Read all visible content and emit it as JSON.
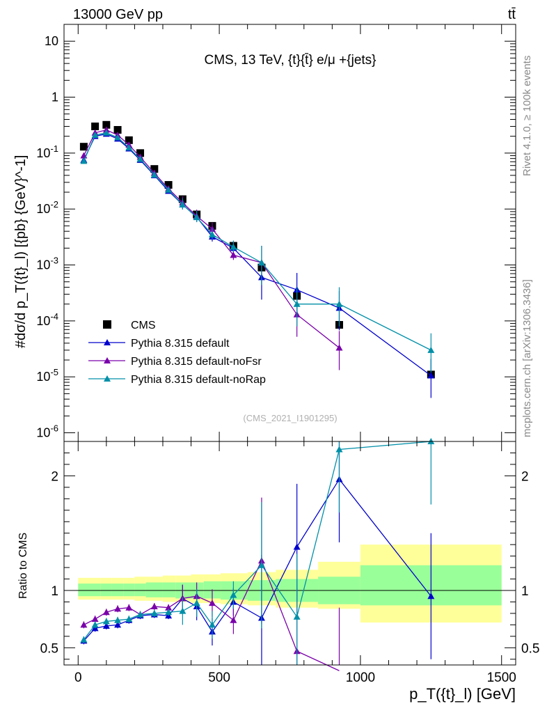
{
  "header": {
    "left": "13000 GeV pp",
    "right": "tt̄"
  },
  "side": {
    "top": "Rivet 4.1.0, ≥ 100k events",
    "bottom": "mcplots.cern.ch [arXiv:1306.3436]"
  },
  "chart_data": [
    {
      "type": "scatter",
      "panel": "main",
      "title": "CMS, 13 TeV, {t}{t̄} e/μ +{jets}",
      "watermark": "(CMS_2021_I1901295)",
      "ylabel": "#dσ/d p_T({t}_l) [{pb} {GeV}^-1]",
      "yscale": "log",
      "ylim": [
        7e-07,
        20
      ],
      "xlim": [
        -50,
        1550
      ],
      "ytick_labels": [
        "10^-6",
        "10^-5",
        "10^-4",
        "10^-3",
        "10^-2",
        "10^-1",
        "1",
        "10"
      ],
      "x": [
        20,
        60,
        100,
        140,
        180,
        220,
        270,
        320,
        370,
        420,
        475,
        550,
        650,
        775,
        925,
        1250
      ],
      "series": [
        {
          "name": "CMS",
          "color": "#000000",
          "marker": "square",
          "values": [
            0.13,
            0.3,
            0.32,
            0.26,
            0.17,
            0.1,
            0.052,
            0.027,
            0.015,
            0.008,
            0.005,
            0.0022,
            0.0009,
            0.00028,
            8.5e-05,
            1.1e-05
          ]
        },
        {
          "name": "Pythia 8.315 default",
          "color": "#0000cc",
          "marker": "triangle",
          "values": [
            0.075,
            0.2,
            0.22,
            0.18,
            0.12,
            0.075,
            0.04,
            0.021,
            0.012,
            0.0072,
            0.0032,
            0.002,
            0.0006,
            0.00036,
            0.00017,
            1.05e-05
          ]
        },
        {
          "name": "Pythia 8.315 default-noFsr",
          "color": "#7a00aa",
          "marker": "triangle",
          "values": [
            0.09,
            0.23,
            0.26,
            0.21,
            0.14,
            0.085,
            0.044,
            0.023,
            0.013,
            0.0075,
            0.0044,
            0.0015,
            0.0011,
            0.00013,
            3.3e-05,
            null
          ]
        },
        {
          "name": "Pythia 8.315 default-noRap",
          "color": "#008fa8",
          "marker": "triangle",
          "values": [
            0.072,
            0.21,
            0.23,
            0.19,
            0.125,
            0.078,
            0.041,
            0.022,
            0.012,
            0.0071,
            0.0035,
            0.0021,
            0.0011,
            0.0002,
            0.0002,
            3e-05
          ]
        }
      ]
    },
    {
      "type": "line",
      "panel": "ratio",
      "ylabel": "Ratio to CMS",
      "xlabel": "p_T({t}_l) [GeV]",
      "ylim": [
        0.35,
        2.3
      ],
      "xlim": [
        -50,
        1550
      ],
      "xticks": [
        0,
        500,
        1000,
        1500
      ],
      "yticks": [
        0.5,
        1,
        2
      ],
      "x": [
        20,
        60,
        100,
        140,
        180,
        220,
        270,
        320,
        370,
        420,
        475,
        550,
        650,
        775,
        925,
        1250
      ],
      "series": [
        {
          "name": "Pythia 8.315 default",
          "color": "#0000cc",
          "values": [
            0.56,
            0.67,
            0.69,
            0.7,
            0.74,
            0.78,
            0.79,
            0.78,
            0.93,
            0.86,
            0.64,
            0.9,
            0.76,
            1.38,
            1.97,
            0.95
          ]
        },
        {
          "name": "Pythia 8.315 default-noFsr",
          "color": "#7a00aa",
          "values": [
            0.7,
            0.75,
            0.81,
            0.84,
            0.85,
            0.79,
            0.86,
            0.85,
            0.93,
            0.95,
            0.89,
            0.74,
            1.26,
            0.47,
            0.3,
            null
          ]
        },
        {
          "name": "Pythia 8.315 default-noRap",
          "color": "#008fa8",
          "values": [
            0.57,
            0.7,
            0.73,
            0.74,
            0.75,
            0.79,
            0.8,
            0.81,
            0.82,
            0.89,
            0.7,
            0.96,
            1.22,
            0.77,
            2.23,
            2.3
          ]
        }
      ],
      "bands": {
        "edges": [
          0,
          40,
          80,
          120,
          160,
          200,
          240,
          300,
          345,
          400,
          445,
          505,
          600,
          700,
          850,
          1000,
          1500
        ],
        "inner_color": "#99ff99",
        "outer_color": "#ffff99",
        "inner": [
          [
            0.95,
            1.06
          ],
          [
            0.95,
            1.06
          ],
          [
            0.95,
            1.06
          ],
          [
            0.95,
            1.06
          ],
          [
            0.95,
            1.06
          ],
          [
            0.95,
            1.06
          ],
          [
            0.94,
            1.07
          ],
          [
            0.94,
            1.07
          ],
          [
            0.93,
            1.07
          ],
          [
            0.93,
            1.07
          ],
          [
            0.93,
            1.08
          ],
          [
            0.92,
            1.08
          ],
          [
            0.91,
            1.09
          ],
          [
            0.9,
            1.1
          ],
          [
            0.88,
            1.12
          ],
          [
            0.87,
            1.22
          ],
          [
            0.87,
            1.22
          ]
        ],
        "outer": [
          [
            0.92,
            1.11
          ],
          [
            0.92,
            1.11
          ],
          [
            0.92,
            1.11
          ],
          [
            0.92,
            1.11
          ],
          [
            0.92,
            1.11
          ],
          [
            0.91,
            1.12
          ],
          [
            0.91,
            1.12
          ],
          [
            0.9,
            1.13
          ],
          [
            0.9,
            1.13
          ],
          [
            0.89,
            1.14
          ],
          [
            0.89,
            1.14
          ],
          [
            0.88,
            1.15
          ],
          [
            0.87,
            1.16
          ],
          [
            0.85,
            1.18
          ],
          [
            0.84,
            1.25
          ],
          [
            0.72,
            1.4
          ],
          [
            0.72,
            1.4
          ]
        ]
      }
    }
  ]
}
